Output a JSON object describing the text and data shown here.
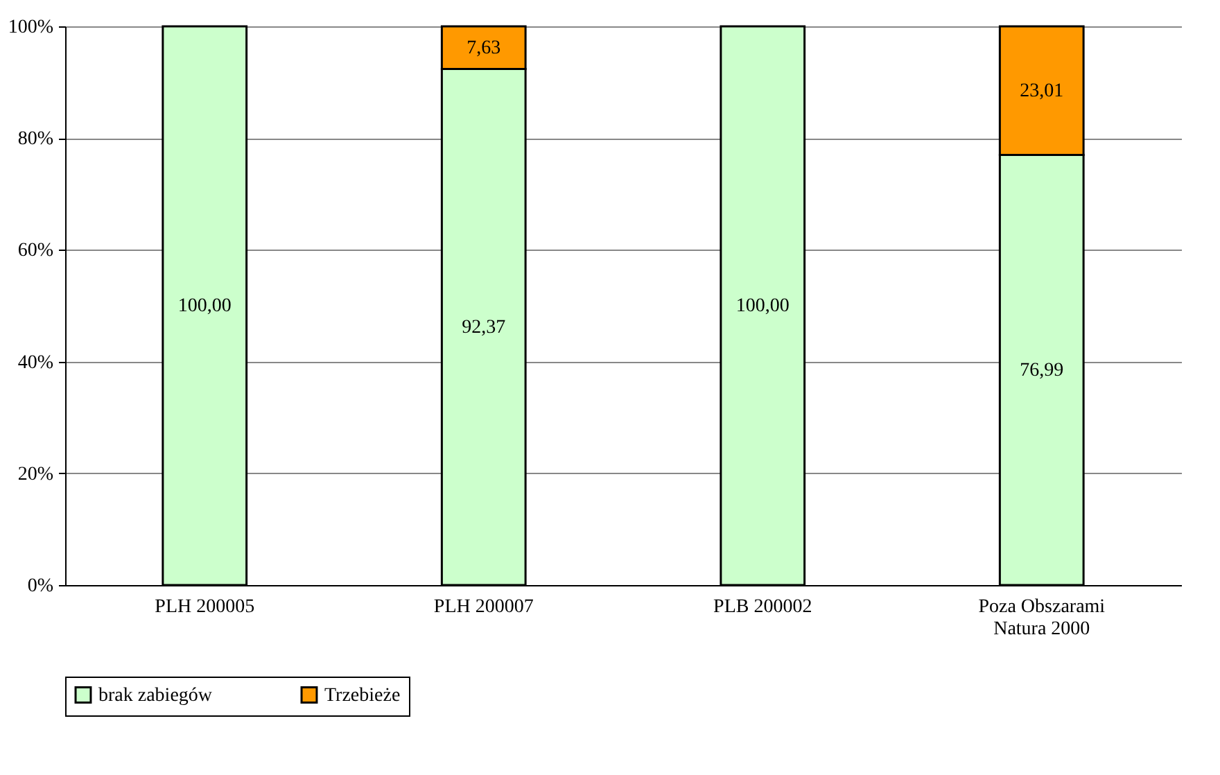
{
  "chart_data": {
    "type": "bar",
    "stacked": true,
    "categories": [
      "PLH 200005",
      "PLH 200007",
      "PLB 200002",
      "Poza Obszarami Natura 2000"
    ],
    "series": [
      {
        "name": "brak zabiegów",
        "color": "#ccffcc",
        "values": [
          100,
          92.37,
          100,
          76.99
        ],
        "value_labels": [
          "100,00",
          "92,37",
          "100,00",
          "76,99"
        ]
      },
      {
        "name": "Trzebieże",
        "color": "#ff9900",
        "values": [
          null,
          7.63,
          null,
          23.01
        ],
        "value_labels": [
          null,
          "7,63",
          null,
          "23,01"
        ]
      }
    ],
    "ylim": [
      0,
      100
    ],
    "yticks": [
      {
        "value": 0,
        "label": "0%"
      },
      {
        "value": 20,
        "label": "20%"
      },
      {
        "value": 40,
        "label": "40%"
      },
      {
        "value": 60,
        "label": "60%"
      },
      {
        "value": 80,
        "label": "80%"
      },
      {
        "value": 100,
        "label": "100%"
      }
    ],
    "grid": "y",
    "legend": "bottom"
  }
}
